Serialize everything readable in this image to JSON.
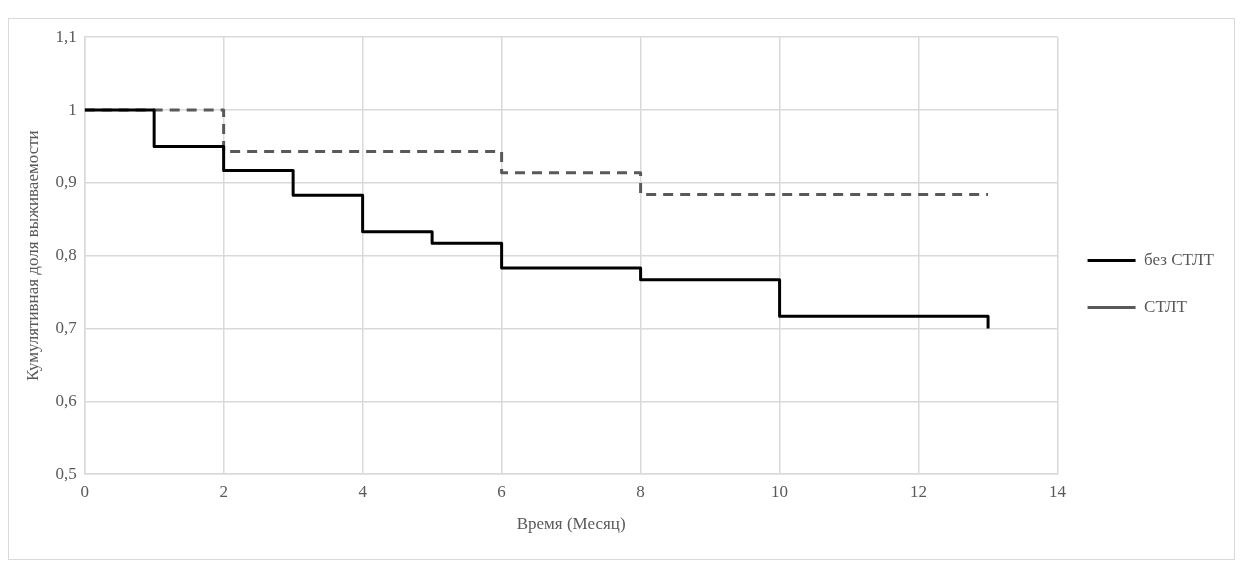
{
  "chart_data": {
    "type": "step",
    "xlabel": "Время (Месяц)",
    "ylabel": "Кумулятивная доля выживаемости",
    "xlim": [
      0,
      14
    ],
    "xticks": [
      0,
      2,
      4,
      6,
      8,
      10,
      12,
      14
    ],
    "ylim": [
      0.5,
      1.1
    ],
    "yticks": [
      {
        "value": 0.5,
        "label": "0,5"
      },
      {
        "value": 0.6,
        "label": "0,6"
      },
      {
        "value": 0.7,
        "label": "0,7"
      },
      {
        "value": 0.8,
        "label": "0,8"
      },
      {
        "value": 0.9,
        "label": "0,9"
      },
      {
        "value": 1,
        "label": "1"
      },
      {
        "value": 1.1,
        "label": "1,1"
      }
    ],
    "grid": true,
    "legend": "right",
    "marker": "none",
    "series": [
      {
        "name": "без СТЛТ",
        "color": "#000000",
        "line_style": "solid",
        "x": [
          0,
          1,
          2,
          3,
          4,
          5,
          6,
          8,
          10,
          13,
          13
        ],
        "values": [
          1,
          0.95,
          0.917,
          0.883,
          0.833,
          0.817,
          0.783,
          0.767,
          0.717,
          0.717,
          0.7
        ]
      },
      {
        "name": "СТЛТ",
        "color": "#595959",
        "line_style": "dashed",
        "x": [
          0,
          2,
          6,
          8,
          13
        ],
        "values": [
          1,
          0.943,
          0.914,
          0.884,
          0.884
        ]
      }
    ]
  }
}
